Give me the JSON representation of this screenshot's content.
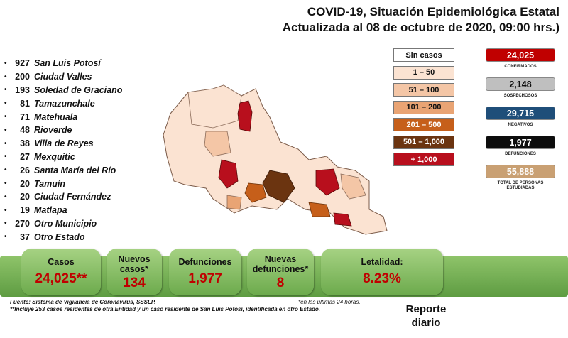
{
  "header": {
    "title_line1": "COVID-19, Situación Epidemiológica Estatal",
    "title_line2": "Actualizada al 08 de octubre de 2020, 09:00 hrs.)"
  },
  "municipalities": [
    {
      "count": "927",
      "name": "San Luis Potosí"
    },
    {
      "count": "200",
      "name": "Ciudad Valles"
    },
    {
      "count": "193",
      "name": "Soledad de Graciano"
    },
    {
      "count": "81",
      "name": "Tamazunchale"
    },
    {
      "count": "71",
      "name": "Matehuala"
    },
    {
      "count": "48",
      "name": "Rioverde"
    },
    {
      "count": "38",
      "name": "Villa de Reyes"
    },
    {
      "count": "27",
      "name": "Mexquitic"
    },
    {
      "count": "26",
      "name": "Santa María del Río"
    },
    {
      "count": "20",
      "name": "Tamuín"
    },
    {
      "count": "20",
      "name": "Ciudad Fernández"
    },
    {
      "count": "19",
      "name": "Matlapa"
    },
    {
      "count": "270",
      "name": "Otro Municipio"
    },
    {
      "count": "37",
      "name": "Otro Estado"
    }
  ],
  "legend": [
    {
      "label": "Sin casos",
      "color": "#ffffff",
      "text_color": "#111111"
    },
    {
      "label": "1 – 50",
      "color": "#fbe3d2",
      "text_color": "#111111"
    },
    {
      "label": "51 – 100",
      "color": "#f4c6a6",
      "text_color": "#111111"
    },
    {
      "label": "101 – 200",
      "color": "#e9a474",
      "text_color": "#111111"
    },
    {
      "label": "201 – 500",
      "color": "#c65f1a",
      "text_color": "#ffffff"
    },
    {
      "label": "501 – 1,000",
      "color": "#6b3410",
      "text_color": "#ffffff"
    },
    {
      "label": "+ 1,000",
      "color": "#b80f1d",
      "text_color": "#ffffff"
    }
  ],
  "stats": [
    {
      "value": "24,025",
      "label": "CONFIRMADOS",
      "color": "#c00000",
      "text_color": "#ffffff"
    },
    {
      "value": "2,148",
      "label": "SOSPECHOSOS",
      "color": "#bfbfbf",
      "text_color": "#111111"
    },
    {
      "value": "29,715",
      "label": "NEGATIVOS",
      "color": "#1f4e79",
      "text_color": "#ffffff"
    },
    {
      "value": "1,977",
      "label": "DEFUNCIONES",
      "color": "#0d0d0d",
      "text_color": "#ffffff"
    },
    {
      "value": "55,888",
      "label": "TOTAL DE PERSONAS ESTUDIADAS",
      "color": "#c9a073",
      "text_color": "#ffffff"
    }
  ],
  "kpis": {
    "casos": {
      "label": "Casos",
      "value": "24,025**"
    },
    "nuevos_casos": {
      "label": "Nuevos casos*",
      "value": "134"
    },
    "defunciones": {
      "label": "Defunciones",
      "value": "1,977"
    },
    "nuevas_defunciones": {
      "label": "Nuevas defunciones*",
      "value": "8"
    },
    "letalidad": {
      "label": "Letalidad:",
      "value": "8.23%"
    }
  },
  "footnotes": {
    "source": "Fuente: Sistema de Vigilancia de Coronavirus, SSSLP.",
    "note": "**Incluye 253 casos residentes de otra Entidad y un caso residente de San Luis Potosí, identificada en otro Estado.",
    "last24": "*en las ultimas 24 horas."
  },
  "report_label_1": "Reporte",
  "report_label_2": "diario"
}
